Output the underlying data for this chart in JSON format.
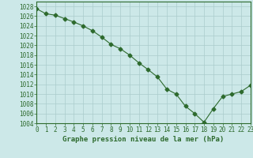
{
  "x": [
    0,
    1,
    2,
    3,
    4,
    5,
    6,
    7,
    8,
    9,
    10,
    11,
    12,
    13,
    14,
    15,
    16,
    17,
    18,
    19,
    20,
    21,
    22,
    23
  ],
  "y": [
    1027.5,
    1026.5,
    1026.2,
    1025.5,
    1024.8,
    1024.0,
    1023.0,
    1021.7,
    1020.2,
    1019.3,
    1018.0,
    1016.4,
    1015.0,
    1013.5,
    1011.0,
    1010.0,
    1007.5,
    1006.0,
    1004.2,
    1007.0,
    1009.5,
    1010.0,
    1010.5,
    1011.8
  ],
  "line_color": "#2d6a2d",
  "marker": "D",
  "marker_size": 2.5,
  "bg_color": "#cce8e8",
  "grid_color": "#aacccc",
  "title": "Graphe pression niveau de la mer (hPa)",
  "ylim": [
    1004,
    1029
  ],
  "yticks": [
    1004,
    1006,
    1008,
    1010,
    1012,
    1014,
    1016,
    1018,
    1020,
    1022,
    1024,
    1026,
    1028
  ],
  "xlim": [
    0,
    23
  ],
  "xticks": [
    0,
    1,
    2,
    3,
    4,
    5,
    6,
    7,
    8,
    9,
    10,
    11,
    12,
    13,
    14,
    15,
    16,
    17,
    18,
    19,
    20,
    21,
    22,
    23
  ],
  "tick_color": "#2d6a2d",
  "label_fontsize": 5.5,
  "title_fontsize": 6.5
}
